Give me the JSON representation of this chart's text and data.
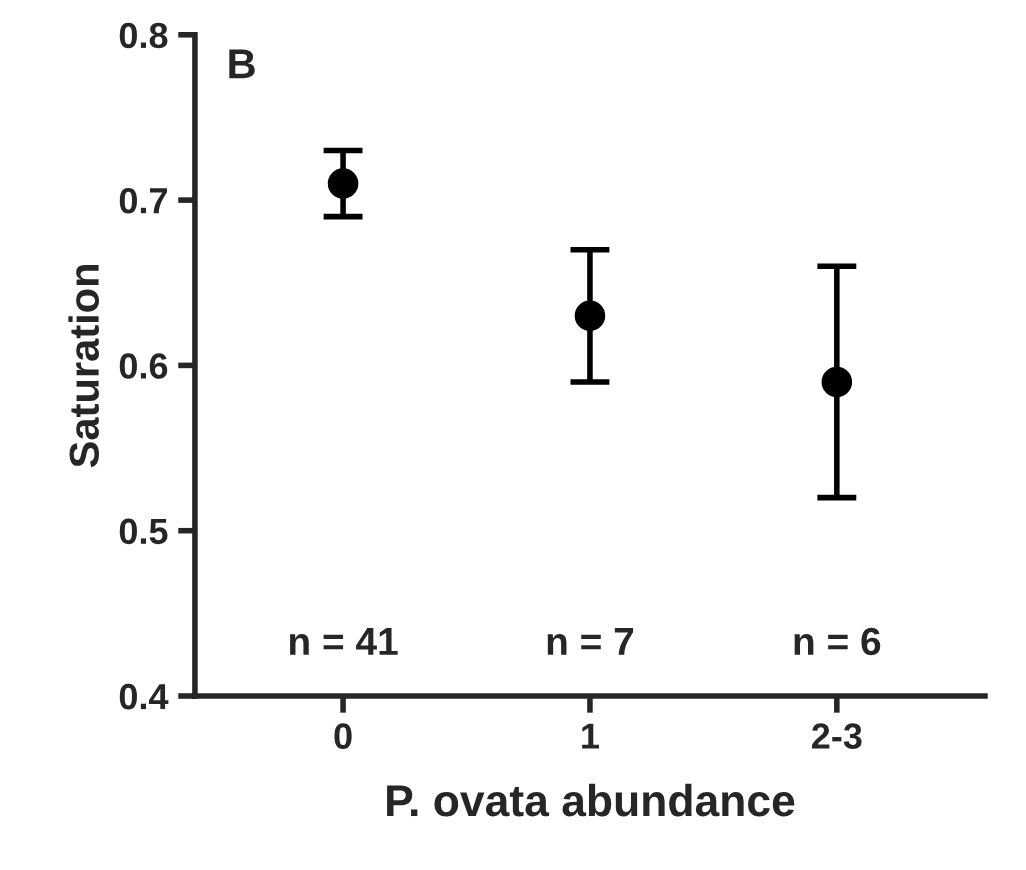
{
  "chart_data": {
    "type": "scatter",
    "xlabel": "P. ovata abundance",
    "ylabel": "Saturation",
    "categories": [
      "0",
      "1",
      "2-3"
    ],
    "values": [
      0.71,
      0.63,
      0.59
    ],
    "color": "#000000",
    "errors": [
      [
        0.69,
        0.73
      ],
      [
        0.59,
        0.67
      ],
      [
        0.52,
        0.66
      ]
    ],
    "marker": "circle",
    "ylim": [
      0.4,
      0.8
    ],
    "yticks": [
      0.4,
      0.5,
      0.6,
      0.7,
      0.8
    ],
    "grid": false,
    "legend": false,
    "annotations": [
      "B",
      "n = 41",
      "n = 7",
      "n = 6"
    ]
  }
}
